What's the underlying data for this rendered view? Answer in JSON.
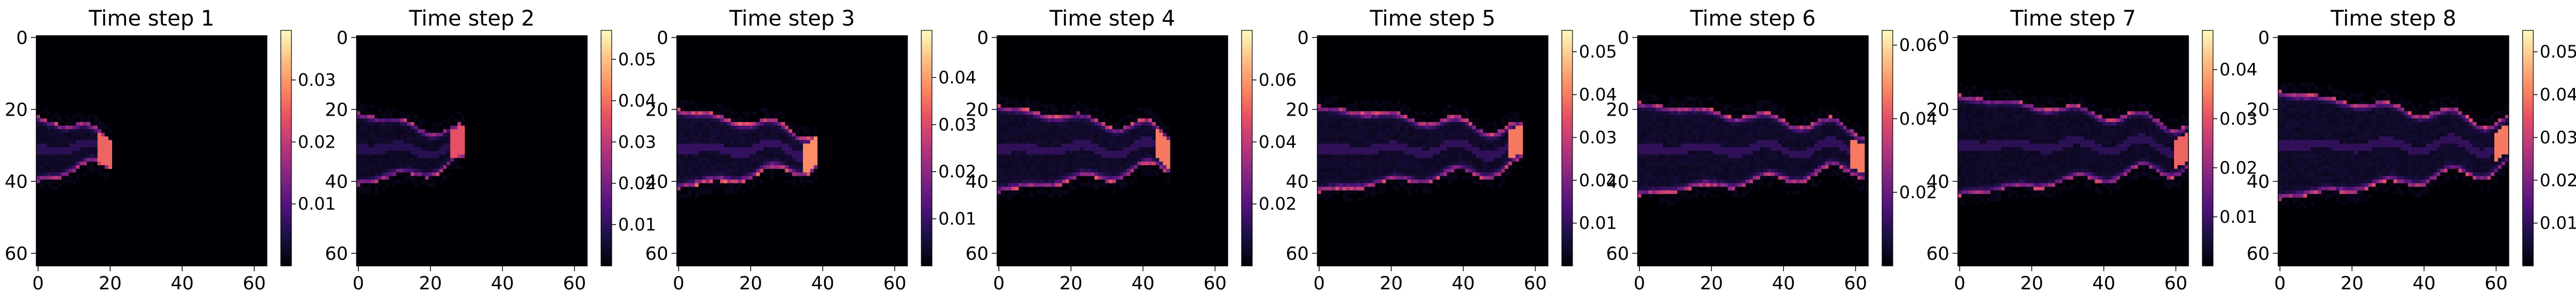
{
  "chart_data": [
    {
      "type": "heatmap",
      "title": "Time step 1",
      "colormap": "magma",
      "grid_size": [
        64,
        64
      ],
      "xlim": [
        0,
        63
      ],
      "ylim": [
        63,
        0
      ],
      "xticks": [
        "0",
        "20",
        "40",
        "60"
      ],
      "yticks": [
        "0",
        "20",
        "40",
        "60"
      ],
      "colorbar_range": [
        0.0,
        0.038
      ],
      "colorbar_ticks": [
        "0.01",
        "0.02",
        "0.03"
      ],
      "colorbar_tick_values": [
        0.01,
        0.02,
        0.03
      ],
      "pattern": {
        "x0": 0,
        "x1": 20,
        "y_center": 31,
        "half_width": 9,
        "intensity": 0.75
      }
    },
    {
      "type": "heatmap",
      "title": "Time step 2",
      "colormap": "magma",
      "grid_size": [
        64,
        64
      ],
      "xlim": [
        0,
        63
      ],
      "ylim": [
        63,
        0
      ],
      "xticks": [
        "0",
        "20",
        "40",
        "60"
      ],
      "yticks": [
        "0",
        "20",
        "40",
        "60"
      ],
      "colorbar_range": [
        0.0,
        0.057
      ],
      "colorbar_ticks": [
        "0.01",
        "0.02",
        "0.03",
        "0.04",
        "0.05"
      ],
      "colorbar_tick_values": [
        0.01,
        0.02,
        0.03,
        0.04,
        0.05
      ],
      "pattern": {
        "x0": 0,
        "x1": 29,
        "y_center": 31,
        "half_width": 10,
        "intensity": 0.7
      }
    },
    {
      "type": "heatmap",
      "title": "Time step 3",
      "colormap": "magma",
      "grid_size": [
        64,
        64
      ],
      "xlim": [
        0,
        63
      ],
      "ylim": [
        63,
        0
      ],
      "xticks": [
        "0",
        "20",
        "40",
        "60"
      ],
      "yticks": [
        "0",
        "20",
        "40",
        "60"
      ],
      "colorbar_range": [
        0.0,
        0.05
      ],
      "colorbar_ticks": [
        "0.01",
        "0.02",
        "0.03",
        "0.04"
      ],
      "colorbar_tick_values": [
        0.01,
        0.02,
        0.03,
        0.04
      ],
      "pattern": {
        "x0": 0,
        "x1": 38,
        "y_center": 31,
        "half_width": 11,
        "intensity": 0.85
      }
    },
    {
      "type": "heatmap",
      "title": "Time step 4",
      "colormap": "magma",
      "grid_size": [
        64,
        64
      ],
      "xlim": [
        0,
        63
      ],
      "ylim": [
        63,
        0
      ],
      "xticks": [
        "0",
        "20",
        "40",
        "60"
      ],
      "yticks": [
        "0",
        "20",
        "40",
        "60"
      ],
      "colorbar_range": [
        0.0,
        0.076
      ],
      "colorbar_ticks": [
        "0.02",
        "0.04",
        "0.06"
      ],
      "colorbar_tick_values": [
        0.02,
        0.04,
        0.06
      ],
      "pattern": {
        "x0": 0,
        "x1": 47,
        "y_center": 31,
        "half_width": 12,
        "intensity": 0.8
      }
    },
    {
      "type": "heatmap",
      "title": "Time step 5",
      "colormap": "magma",
      "grid_size": [
        64,
        64
      ],
      "xlim": [
        0,
        63
      ],
      "ylim": [
        63,
        0
      ],
      "xticks": [
        "0",
        "20",
        "40",
        "60"
      ],
      "yticks": [
        "0",
        "20",
        "40",
        "60"
      ],
      "colorbar_range": [
        0.0,
        0.055
      ],
      "colorbar_ticks": [
        "0.01",
        "0.02",
        "0.03",
        "0.04",
        "0.05"
      ],
      "colorbar_tick_values": [
        0.01,
        0.02,
        0.03,
        0.04,
        0.05
      ],
      "pattern": {
        "x0": 0,
        "x1": 56,
        "y_center": 31,
        "half_width": 12,
        "intensity": 0.8
      }
    },
    {
      "type": "heatmap",
      "title": "Time step 6",
      "colormap": "magma",
      "grid_size": [
        64,
        64
      ],
      "xlim": [
        0,
        63
      ],
      "ylim": [
        63,
        0
      ],
      "xticks": [
        "0",
        "20",
        "40",
        "60"
      ],
      "yticks": [
        "0",
        "20",
        "40",
        "60"
      ],
      "colorbar_range": [
        0.0,
        0.064
      ],
      "colorbar_ticks": [
        "0.02",
        "0.04",
        "0.06"
      ],
      "colorbar_tick_values": [
        0.02,
        0.04,
        0.06
      ],
      "pattern": {
        "x0": 0,
        "x1": 62,
        "y_center": 31,
        "half_width": 13,
        "intensity": 0.8
      }
    },
    {
      "type": "heatmap",
      "title": "Time step 7",
      "colormap": "magma",
      "grid_size": [
        64,
        64
      ],
      "xlim": [
        0,
        63
      ],
      "ylim": [
        63,
        0
      ],
      "xticks": [
        "0",
        "20",
        "40",
        "60"
      ],
      "yticks": [
        "0",
        "20",
        "40",
        "60"
      ],
      "colorbar_range": [
        0.0,
        0.048
      ],
      "colorbar_ticks": [
        "0.01",
        "0.02",
        "0.03",
        "0.04"
      ],
      "colorbar_tick_values": [
        0.01,
        0.02,
        0.03,
        0.04
      ],
      "pattern": {
        "x0": 0,
        "x1": 63,
        "y_center": 30,
        "half_width": 14,
        "intensity": 0.75
      }
    },
    {
      "type": "heatmap",
      "title": "Time step 8",
      "colormap": "magma",
      "grid_size": [
        64,
        64
      ],
      "xlim": [
        0,
        63
      ],
      "ylim": [
        63,
        0
      ],
      "xticks": [
        "0",
        "20",
        "40",
        "60"
      ],
      "yticks": [
        "0",
        "20",
        "40",
        "60"
      ],
      "colorbar_range": [
        0.0,
        0.055
      ],
      "colorbar_ticks": [
        "0.01",
        "0.02",
        "0.03",
        "0.04",
        "0.05"
      ],
      "colorbar_tick_values": [
        0.01,
        0.02,
        0.03,
        0.04,
        0.05
      ],
      "pattern": {
        "x0": 0,
        "x1": 63,
        "y_center": 30,
        "half_width": 15,
        "intensity": 0.8
      }
    }
  ]
}
